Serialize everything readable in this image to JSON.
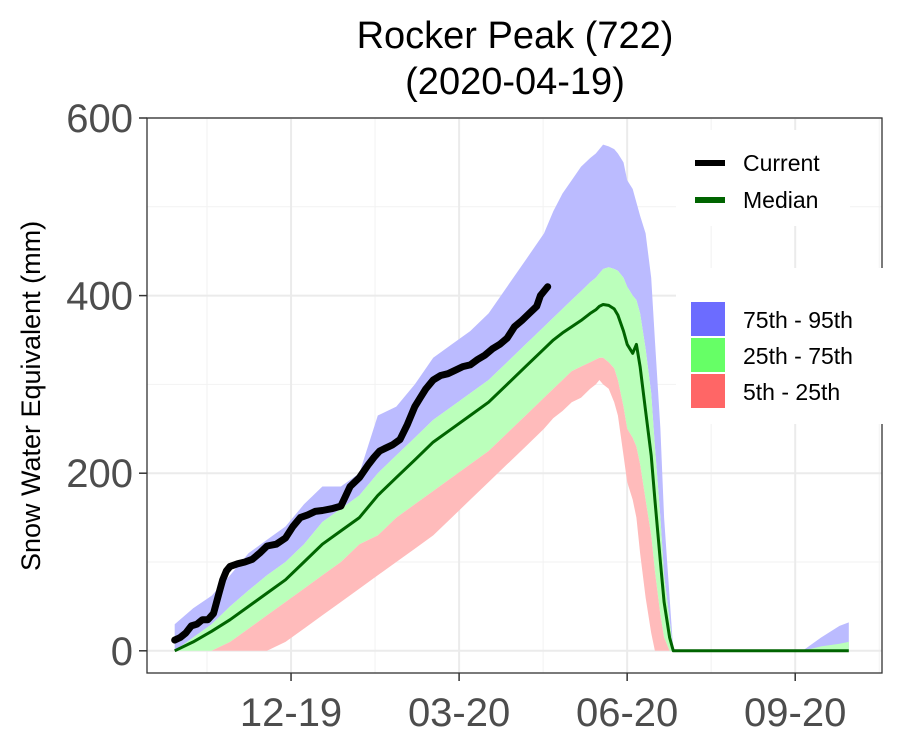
{
  "chart_data": {
    "type": "area",
    "title_line1": "Rocker Peak (722)",
    "title_line2": "(2020-04-19)",
    "ylabel": "Snow Water Equivalent (mm)",
    "xlabel": "",
    "ylim": [
      -25,
      600
    ],
    "xlim": [
      -15,
      383
    ],
    "grid": true,
    "legend_placement": "top-right",
    "x_ticks": [
      {
        "day": 63,
        "label": "12-19"
      },
      {
        "day": 154,
        "label": "03-20"
      },
      {
        "day": 245,
        "label": "06-20"
      },
      {
        "day": 336,
        "label": "09-20"
      }
    ],
    "y_ticks": [
      0,
      200,
      400,
      600
    ],
    "x": [
      0,
      10,
      20,
      30,
      40,
      50,
      60,
      70,
      80,
      90,
      100,
      110,
      120,
      130,
      140,
      150,
      160,
      170,
      180,
      190,
      200,
      205,
      210,
      215,
      220,
      225,
      228,
      230,
      232,
      235,
      238,
      240,
      243,
      245,
      248,
      250,
      252,
      255,
      258,
      260,
      263,
      265,
      268,
      270,
      272,
      275,
      280,
      290,
      300,
      310,
      320,
      330,
      340,
      350,
      360,
      365
    ],
    "series": [
      {
        "name": "Current",
        "color": "#000000",
        "x": [
          0,
          3,
          6,
          9,
          12,
          15,
          18,
          21,
          24,
          26,
          28,
          30,
          34,
          38,
          42,
          46,
          50,
          55,
          60,
          64,
          68,
          72,
          76,
          80,
          85,
          90,
          95,
          100,
          105,
          108,
          111,
          114,
          118,
          122,
          126,
          130,
          133,
          136,
          140,
          144,
          148,
          152,
          156,
          160,
          164,
          168,
          172,
          176,
          180,
          184,
          188,
          192,
          196,
          198,
          200,
          202
        ],
        "values": [
          12,
          15,
          20,
          28,
          30,
          35,
          35,
          42,
          65,
          80,
          90,
          95,
          98,
          100,
          103,
          110,
          118,
          120,
          127,
          140,
          150,
          153,
          157,
          158,
          160,
          163,
          185,
          195,
          210,
          218,
          225,
          228,
          232,
          238,
          255,
          275,
          285,
          295,
          305,
          310,
          312,
          316,
          320,
          322,
          328,
          333,
          340,
          345,
          352,
          365,
          372,
          380,
          388,
          400,
          405,
          410
        ]
      },
      {
        "name": "Median",
        "color": "#006400",
        "values": [
          0,
          10,
          22,
          35,
          50,
          65,
          80,
          100,
          120,
          135,
          150,
          175,
          195,
          215,
          235,
          250,
          265,
          280,
          300,
          320,
          340,
          350,
          358,
          365,
          372,
          380,
          384,
          388,
          390,
          389,
          385,
          378,
          360,
          345,
          335,
          345,
          320,
          270,
          220,
          170,
          100,
          55,
          15,
          0,
          0,
          0,
          0,
          0,
          0,
          0,
          0,
          0,
          0,
          0,
          0,
          0
        ]
      }
    ],
    "bands": [
      {
        "name": "75th - 95th",
        "color": "#6c6cff",
        "fill": "#bbbbff",
        "lower": [
          0,
          15,
          30,
          50,
          68,
          85,
          100,
          120,
          145,
          160,
          175,
          200,
          220,
          240,
          260,
          275,
          290,
          305,
          325,
          345,
          365,
          375,
          385,
          395,
          405,
          415,
          420,
          425,
          430,
          432,
          430,
          428,
          420,
          410,
          400,
          395,
          380,
          340,
          290,
          230,
          150,
          85,
          35,
          0,
          0,
          0,
          0,
          0,
          0,
          0,
          0,
          0,
          0,
          0,
          0,
          0
        ],
        "upper": [
          30,
          48,
          62,
          85,
          110,
          125,
          140,
          165,
          185,
          185,
          200,
          265,
          275,
          300,
          330,
          345,
          360,
          380,
          410,
          440,
          470,
          495,
          515,
          530,
          545,
          555,
          560,
          565,
          570,
          568,
          565,
          560,
          550,
          530,
          520,
          505,
          490,
          470,
          420,
          350,
          250,
          150,
          60,
          0,
          0,
          0,
          0,
          0,
          0,
          0,
          0,
          0,
          0,
          15,
          28,
          32
        ]
      },
      {
        "name": "25th - 75th",
        "color": "#66ff66",
        "fill": "#bbffbb",
        "lower": [
          0,
          0,
          0,
          10,
          25,
          40,
          55,
          70,
          85,
          100,
          120,
          130,
          150,
          165,
          180,
          195,
          210,
          225,
          245,
          265,
          285,
          295,
          305,
          315,
          320,
          325,
          328,
          330,
          330,
          325,
          318,
          305,
          275,
          250,
          240,
          230,
          210,
          170,
          130,
          90,
          40,
          15,
          0,
          0,
          0,
          0,
          0,
          0,
          0,
          0,
          0,
          0,
          0,
          0,
          0,
          0
        ],
        "upper": [
          0,
          15,
          30,
          50,
          68,
          85,
          100,
          120,
          145,
          160,
          175,
          200,
          220,
          240,
          260,
          275,
          290,
          305,
          325,
          345,
          365,
          375,
          385,
          395,
          405,
          415,
          420,
          425,
          430,
          432,
          430,
          428,
          420,
          410,
          400,
          395,
          380,
          340,
          290,
          230,
          150,
          85,
          35,
          0,
          0,
          0,
          0,
          0,
          0,
          0,
          0,
          0,
          0,
          5,
          8,
          10
        ]
      },
      {
        "name": "5th - 25th",
        "color": "#ff6666",
        "fill": "#ffbbbb",
        "lower": [
          0,
          0,
          0,
          0,
          0,
          0,
          10,
          25,
          40,
          55,
          70,
          85,
          100,
          115,
          130,
          150,
          170,
          190,
          210,
          230,
          250,
          262,
          270,
          280,
          285,
          295,
          300,
          305,
          300,
          295,
          280,
          265,
          220,
          190,
          170,
          150,
          110,
          60,
          20,
          0,
          0,
          0,
          0,
          0,
          0,
          0,
          0,
          0,
          0,
          0,
          0,
          0,
          0,
          0,
          0,
          0
        ],
        "upper": [
          0,
          0,
          0,
          10,
          25,
          40,
          55,
          70,
          85,
          100,
          120,
          130,
          150,
          165,
          180,
          195,
          210,
          225,
          245,
          265,
          285,
          295,
          305,
          315,
          320,
          325,
          328,
          330,
          330,
          325,
          318,
          305,
          275,
          250,
          240,
          230,
          210,
          170,
          130,
          90,
          40,
          15,
          0,
          0,
          0,
          0,
          0,
          0,
          0,
          0,
          0,
          0,
          0,
          0,
          0,
          0
        ]
      }
    ],
    "legend": {
      "lines": [
        {
          "label": "Current",
          "color": "#000000"
        },
        {
          "label": "Median",
          "color": "#006400"
        }
      ],
      "fills": [
        {
          "label": "75th - 95th",
          "color": "#6c6cff"
        },
        {
          "label": "25th - 75th",
          "color": "#66ff66"
        },
        {
          "label": "5th - 25th",
          "color": "#ff6666"
        }
      ]
    }
  }
}
